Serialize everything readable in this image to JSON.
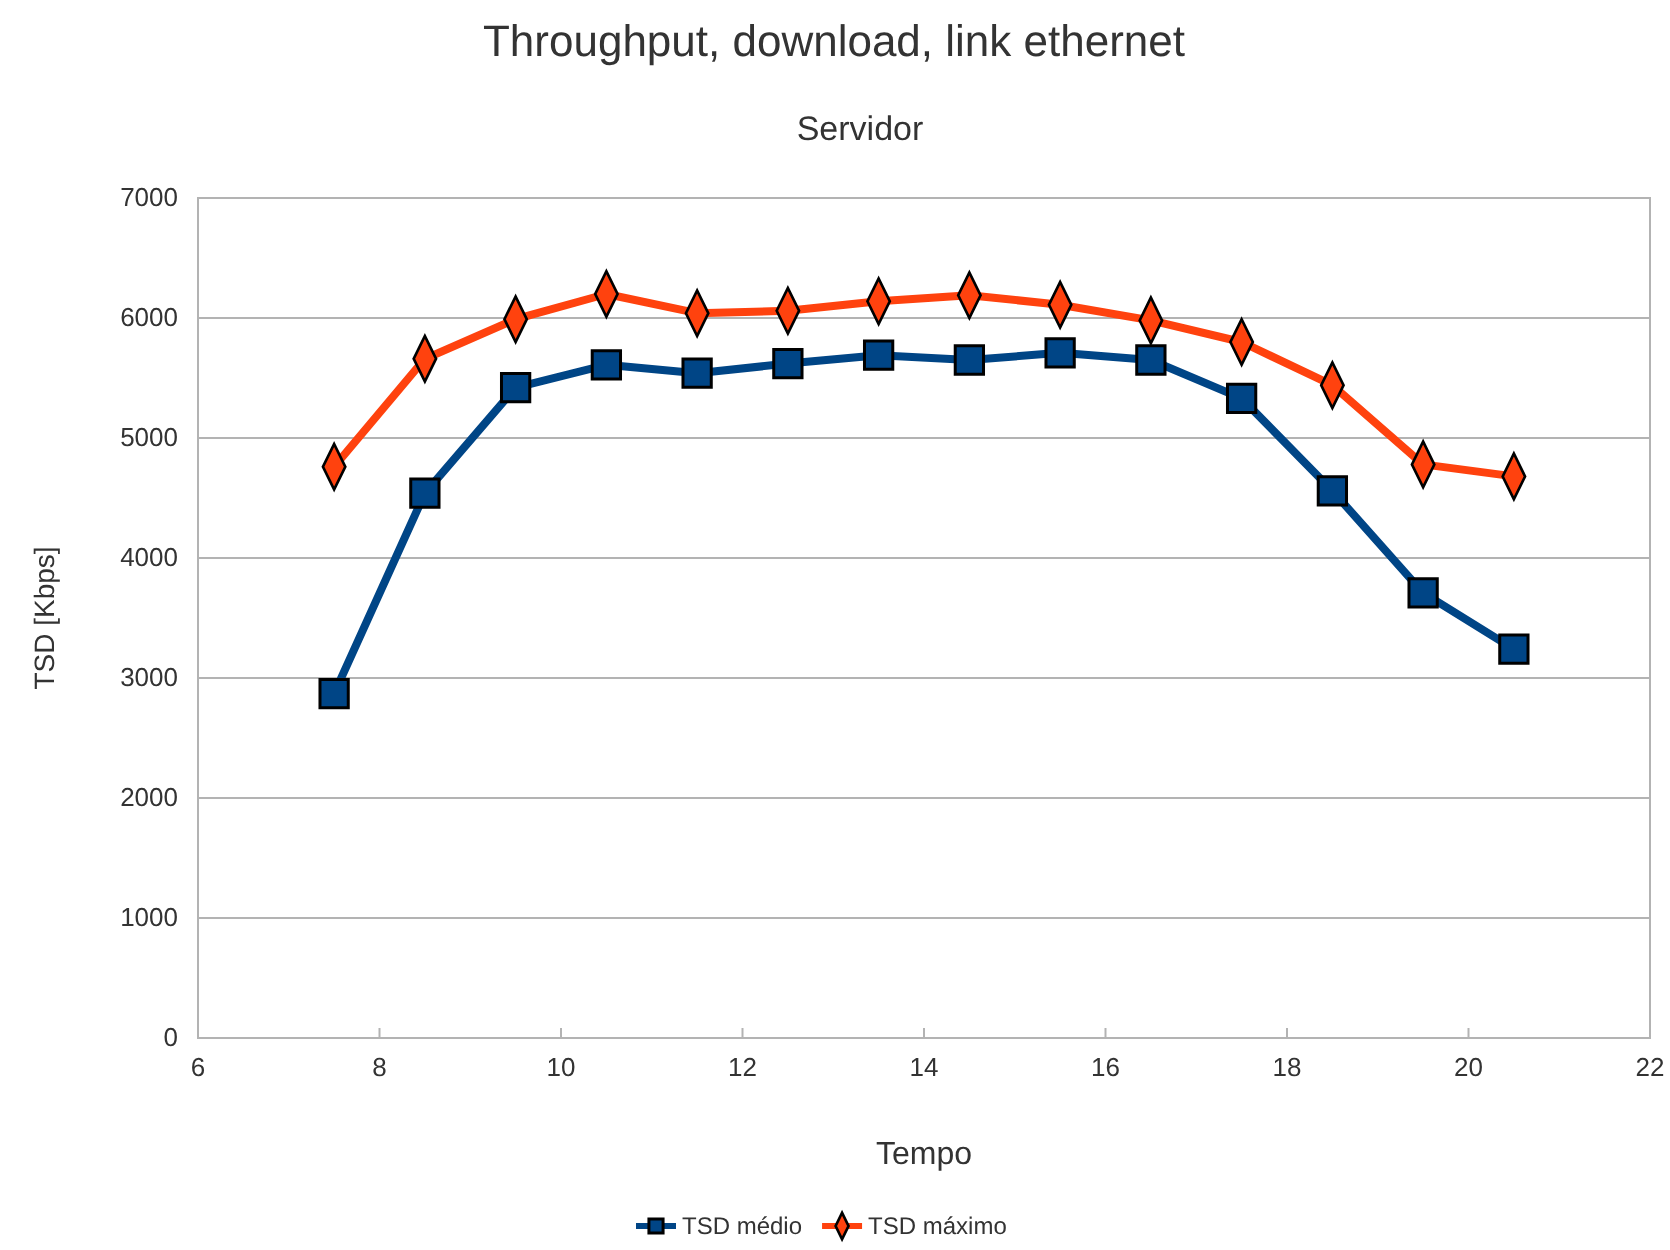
{
  "chart_data": {
    "type": "line",
    "title": "Throughput, download, link ethernet",
    "subtitle": "Servidor",
    "xlabel": "Tempo",
    "ylabel": "TSD [Kbps]",
    "x": [
      7.5,
      8.5,
      9.5,
      10.5,
      11.5,
      12.5,
      13.5,
      14.5,
      15.5,
      16.5,
      17.5,
      18.5,
      19.5,
      20.5
    ],
    "series": [
      {
        "name": "TSD médio",
        "color": "#004586",
        "marker": "square",
        "values": [
          2870,
          4540,
          5420,
          5610,
          5540,
          5620,
          5690,
          5650,
          5710,
          5650,
          5330,
          4560,
          3710,
          3240
        ]
      },
      {
        "name": "TSD máximo",
        "color": "#ff420e",
        "marker": "diamond",
        "values": [
          4760,
          5660,
          5990,
          6200,
          6040,
          6060,
          6140,
          6190,
          6110,
          5980,
          5800,
          5440,
          4780,
          4680
        ]
      }
    ],
    "xlim": [
      6,
      22
    ],
    "xticks": [
      6,
      8,
      10,
      12,
      14,
      16,
      18,
      20,
      22
    ],
    "ylim": [
      0,
      7000
    ],
    "yticks": [
      0,
      1000,
      2000,
      3000,
      4000,
      5000,
      6000,
      7000
    ],
    "grid": "y",
    "legend": "bottom",
    "line_style": "solid"
  }
}
